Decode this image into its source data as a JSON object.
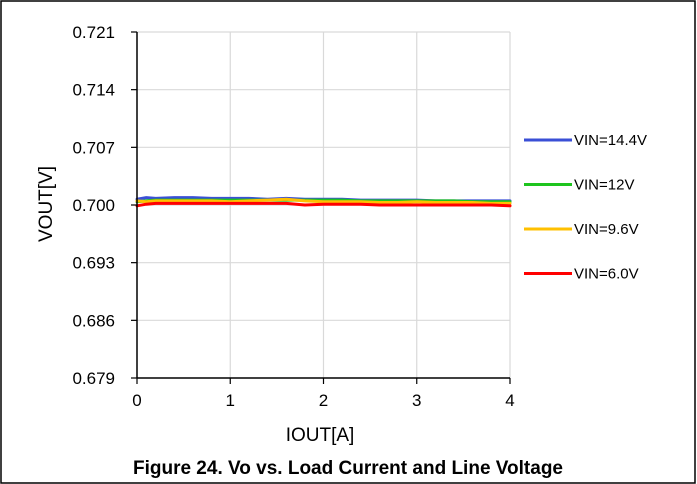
{
  "chart_data": {
    "type": "line",
    "title": "",
    "caption": "Figure 24. Vo vs. Load Current and Line Voltage",
    "xlabel": "IOUT[A]",
    "ylabel": "VOUT[V]",
    "xlim": [
      0,
      4
    ],
    "ylim": [
      0.679,
      0.721
    ],
    "x_ticks": [
      "0",
      "1",
      "2",
      "3",
      "4"
    ],
    "y_ticks": [
      "0.721",
      "0.714",
      "0.707",
      "0.700",
      "0.693",
      "0.686",
      "0.679"
    ],
    "grid": true,
    "legend_position": "right",
    "x": [
      0,
      0.1,
      0.2,
      0.4,
      0.6,
      0.8,
      1.0,
      1.2,
      1.4,
      1.6,
      1.8,
      2.0,
      2.2,
      2.4,
      2.6,
      2.8,
      3.0,
      3.2,
      3.4,
      3.6,
      3.8,
      4.0
    ],
    "series": [
      {
        "name": "VIN=14.4V",
        "color": "#3a4fd6",
        "values": [
          0.7007,
          0.7009,
          0.7008,
          0.7009,
          0.7009,
          0.7008,
          0.7008,
          0.7008,
          0.7007,
          0.7008,
          0.7007,
          0.7007,
          0.7007,
          0.7006,
          0.7006,
          0.7006,
          0.7006,
          0.7005,
          0.7005,
          0.7005,
          0.7005,
          0.7005
        ]
      },
      {
        "name": "VIN=12V",
        "color": "#1ec41e",
        "values": [
          0.7004,
          0.7005,
          0.7006,
          0.7006,
          0.7006,
          0.7006,
          0.7006,
          0.7006,
          0.7006,
          0.7006,
          0.7006,
          0.7006,
          0.7006,
          0.7005,
          0.7005,
          0.7005,
          0.7005,
          0.7005,
          0.7005,
          0.7004,
          0.7004,
          0.7004
        ]
      },
      {
        "name": "VIN=9.6V",
        "color": "#ffc000",
        "values": [
          0.7005,
          0.7004,
          0.7005,
          0.7005,
          0.7005,
          0.7005,
          0.7004,
          0.7005,
          0.7006,
          0.7007,
          0.7005,
          0.7004,
          0.7004,
          0.7004,
          0.7003,
          0.7003,
          0.7004,
          0.7003,
          0.7003,
          0.7003,
          0.7002,
          0.7002
        ]
      },
      {
        "name": "VIN=6.0V",
        "color": "#ff0000",
        "values": [
          0.6999,
          0.7001,
          0.7002,
          0.7002,
          0.7002,
          0.7002,
          0.7002,
          0.7002,
          0.7002,
          0.7002,
          0.7,
          0.7001,
          0.7001,
          0.7001,
          0.7,
          0.7,
          0.7,
          0.7,
          0.7,
          0.7,
          0.7,
          0.6999
        ]
      }
    ]
  }
}
